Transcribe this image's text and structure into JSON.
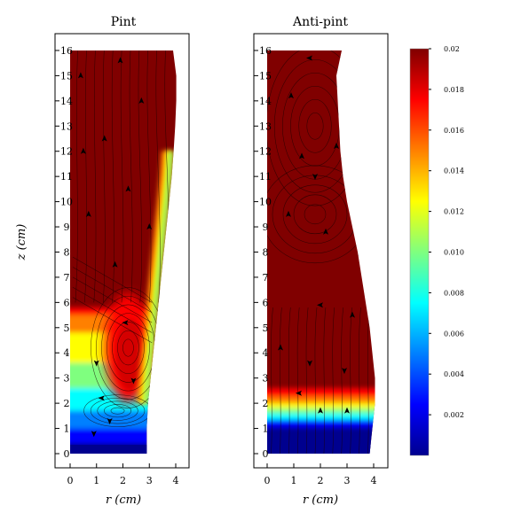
{
  "chart_data": {
    "type": "heatmap",
    "colormap": "jet",
    "panels": [
      {
        "title": "Pint",
        "xlabel": "r (cm)",
        "ylabel": "z (cm)",
        "xlim": [
          0,
          4
        ],
        "ylim": [
          0,
          16
        ],
        "x_ticks": [
          "0",
          "1",
          "2",
          "3",
          "4"
        ],
        "y_ticks": [
          "0",
          "1",
          "2",
          "3",
          "4",
          "5",
          "6",
          "7",
          "8",
          "9",
          "10",
          "11",
          "12",
          "13",
          "14",
          "15",
          "16"
        ],
        "boundary_radius": [
          [
            0,
            2.9
          ],
          [
            1,
            2.9
          ],
          [
            2,
            2.95
          ],
          [
            3,
            3.05
          ],
          [
            4,
            3.15
          ],
          [
            5,
            3.25
          ],
          [
            6,
            3.35
          ],
          [
            7,
            3.45
          ],
          [
            8,
            3.55
          ],
          [
            9,
            3.65
          ],
          [
            10,
            3.75
          ],
          [
            11,
            3.85
          ],
          [
            12,
            3.92
          ],
          [
            13,
            3.98
          ],
          [
            14,
            4.02
          ],
          [
            15,
            4.02
          ],
          [
            16,
            3.9
          ]
        ],
        "low_region_top_z": 5.8,
        "vortex_centers": [
          [
            2.2,
            4.2
          ],
          [
            1.8,
            1.7
          ]
        ]
      },
      {
        "title": "Anti-pint",
        "xlabel": "r (cm)",
        "ylabel": "",
        "xlim": [
          0,
          4
        ],
        "ylim": [
          0,
          16
        ],
        "x_ticks": [
          "0",
          "1",
          "2",
          "3",
          "4"
        ],
        "y_ticks": [
          "0",
          "1",
          "2",
          "3",
          "4",
          "5",
          "6",
          "7",
          "8",
          "9",
          "10",
          "11",
          "12",
          "13",
          "14",
          "15",
          "16"
        ],
        "boundary_radius": [
          [
            0,
            3.85
          ],
          [
            1,
            3.95
          ],
          [
            2,
            4.05
          ],
          [
            3,
            4.05
          ],
          [
            4,
            3.95
          ],
          [
            5,
            3.85
          ],
          [
            6,
            3.7
          ],
          [
            7,
            3.55
          ],
          [
            8,
            3.4
          ],
          [
            9,
            3.2
          ],
          [
            10,
            3.0
          ],
          [
            11,
            2.85
          ],
          [
            12,
            2.75
          ],
          [
            13,
            2.7
          ],
          [
            14,
            2.65
          ],
          [
            15,
            2.6
          ],
          [
            16,
            2.8
          ]
        ],
        "interface_z": 1.9,
        "vortex_centers": [
          [
            1.8,
            13.0
          ],
          [
            1.8,
            9.5
          ]
        ]
      }
    ],
    "colorbar": {
      "min": 0,
      "max": 0.02,
      "tick_labels": [
        "0.02",
        "0.018",
        "0.016",
        "0.014",
        "0.012",
        "0.010",
        "0.008",
        "0.006",
        "0.004",
        "0.002"
      ],
      "tick_values": [
        0.02,
        0.018,
        0.016,
        0.014,
        0.012,
        0.01,
        0.008,
        0.006,
        0.004,
        0.002
      ]
    }
  }
}
